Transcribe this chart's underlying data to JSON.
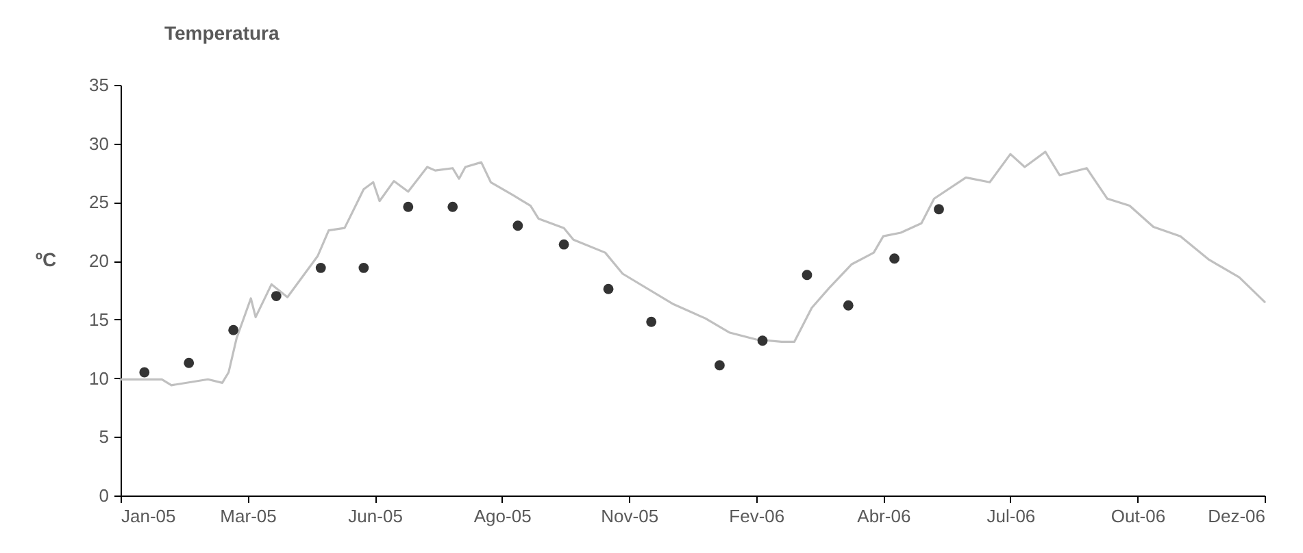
{
  "chart_data": {
    "type": "line",
    "title": "Temperatura",
    "ylabel": "ºC",
    "xlim": [
      "2005-01-01",
      "2006-12-22"
    ],
    "ylim": [
      0,
      35
    ],
    "yticks": [
      0,
      5,
      10,
      15,
      20,
      25,
      30,
      35
    ],
    "xticks": [
      {
        "value": "2005-01-01",
        "label": "Jan-05"
      },
      {
        "value": "2005-03-22",
        "label": "Mar-05"
      },
      {
        "value": "2005-06-10",
        "label": "Jun-05"
      },
      {
        "value": "2005-08-29",
        "label": "Ago-05"
      },
      {
        "value": "2005-11-17",
        "label": "Nov-05"
      },
      {
        "value": "2006-02-05",
        "label": "Fev-06"
      },
      {
        "value": "2006-04-26",
        "label": "Abr-06"
      },
      {
        "value": "2006-07-15",
        "label": "Jul-06"
      },
      {
        "value": "2006-10-03",
        "label": "Out-06"
      },
      {
        "value": "2006-12-22",
        "label": "Dez-06"
      }
    ],
    "grid": false,
    "series": [
      {
        "color": "#c0c0c0",
        "line_style": "solid",
        "x": [
          "2005-01-01",
          "2005-01-27",
          "2005-02-02",
          "2005-02-25",
          "2005-03-06",
          "2005-03-10",
          "2005-03-15",
          "2005-03-24",
          "2005-03-27",
          "2005-04-06",
          "2005-04-16",
          "2005-05-05",
          "2005-05-12",
          "2005-05-22",
          "2005-06-03",
          "2005-06-09",
          "2005-06-13",
          "2005-06-22",
          "2005-07-01",
          "2005-07-13",
          "2005-07-18",
          "2005-07-29",
          "2005-08-02",
          "2005-08-06",
          "2005-08-16",
          "2005-08-22",
          "2005-09-05",
          "2005-09-16",
          "2005-09-21",
          "2005-10-07",
          "2005-10-13",
          "2005-11-02",
          "2005-11-13",
          "2005-12-15",
          "2006-01-04",
          "2006-01-19",
          "2006-02-05",
          "2006-02-21",
          "2006-03-01",
          "2006-03-12",
          "2006-03-23",
          "2006-04-06",
          "2006-04-20",
          "2006-04-26",
          "2006-05-07",
          "2006-05-20",
          "2006-05-28",
          "2006-06-17",
          "2006-07-02",
          "2006-07-15",
          "2006-07-24",
          "2006-08-06",
          "2006-08-15",
          "2006-09-01",
          "2006-09-14",
          "2006-09-28",
          "2006-10-13",
          "2006-10-30",
          "2006-11-17",
          "2006-12-06",
          "2006-12-22"
        ],
        "values": [
          9.9,
          9.9,
          9.4,
          9.9,
          9.6,
          10.5,
          13.4,
          16.8,
          15.2,
          18.0,
          16.9,
          20.4,
          22.6,
          22.8,
          26.1,
          26.7,
          25.1,
          26.8,
          25.9,
          28.0,
          27.7,
          27.9,
          27.0,
          28.0,
          28.4,
          26.7,
          25.6,
          24.7,
          23.6,
          22.8,
          21.8,
          20.7,
          18.9,
          16.3,
          15.1,
          13.9,
          13.3,
          13.1,
          13.1,
          16.0,
          17.7,
          19.7,
          20.7,
          22.1,
          22.4,
          23.2,
          25.3,
          27.1,
          26.7,
          29.1,
          28.0,
          29.3,
          27.3,
          27.9,
          25.3,
          24.7,
          22.9,
          22.1,
          20.1,
          18.6,
          16.5
        ]
      },
      {
        "type": "scatter",
        "color": "#333333",
        "marker": "circle",
        "x": [
          "2005-01-16",
          "2005-02-13",
          "2005-03-13",
          "2005-04-09",
          "2005-05-07",
          "2005-06-03",
          "2005-07-01",
          "2005-07-29",
          "2005-09-08",
          "2005-10-07",
          "2005-11-04",
          "2005-12-01",
          "2006-01-13",
          "2006-02-09",
          "2006-03-09",
          "2006-04-04",
          "2006-05-03",
          "2006-05-31"
        ],
        "values": [
          10.5,
          11.3,
          14.1,
          17.0,
          19.4,
          19.4,
          24.6,
          24.6,
          23.0,
          21.4,
          17.6,
          14.8,
          11.1,
          13.2,
          18.8,
          16.2,
          20.2,
          24.4
        ]
      }
    ]
  }
}
